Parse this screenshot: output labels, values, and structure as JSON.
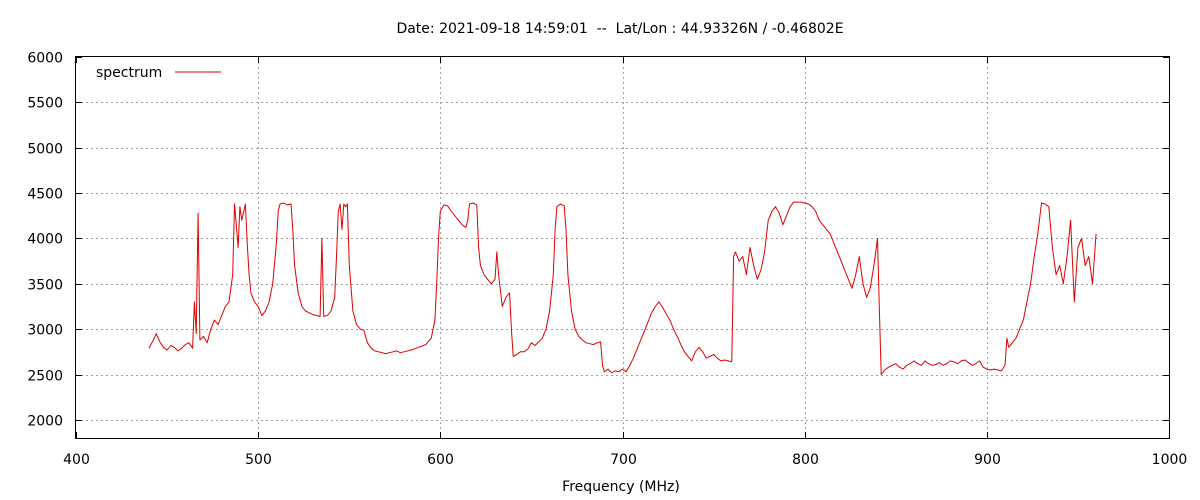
{
  "chart_data": {
    "type": "line",
    "title": "Date: 2021-09-18 14:59:01  --  Lat/Lon : 44.93326N / -0.46802E",
    "xlabel": "Frequency (MHz)",
    "ylabel": "",
    "xlim": [
      400,
      1000
    ],
    "ylim": [
      1800,
      6000
    ],
    "x_ticks": [
      400,
      500,
      600,
      700,
      800,
      900,
      1000
    ],
    "y_ticks": [
      2000,
      2500,
      3000,
      3500,
      4000,
      4500,
      5000,
      5500,
      6000
    ],
    "grid": true,
    "legend_position": "top-left",
    "series": [
      {
        "name": "spectrum",
        "color": "#e00000",
        "points": [
          [
            440,
            2790
          ],
          [
            442,
            2860
          ],
          [
            444,
            2950
          ],
          [
            446,
            2860
          ],
          [
            448,
            2800
          ],
          [
            450,
            2770
          ],
          [
            452,
            2820
          ],
          [
            454,
            2800
          ],
          [
            456,
            2760
          ],
          [
            458,
            2790
          ],
          [
            460,
            2830
          ],
          [
            462,
            2850
          ],
          [
            464,
            2790
          ],
          [
            465,
            3300
          ],
          [
            466,
            2950
          ],
          [
            467,
            4280
          ],
          [
            468,
            2880
          ],
          [
            470,
            2920
          ],
          [
            472,
            2850
          ],
          [
            474,
            3000
          ],
          [
            476,
            3100
          ],
          [
            478,
            3050
          ],
          [
            480,
            3150
          ],
          [
            482,
            3250
          ],
          [
            484,
            3300
          ],
          [
            486,
            3600
          ],
          [
            487,
            4380
          ],
          [
            488,
            4150
          ],
          [
            489,
            3900
          ],
          [
            490,
            4350
          ],
          [
            491,
            4200
          ],
          [
            493,
            4380
          ],
          [
            494,
            3950
          ],
          [
            495,
            3600
          ],
          [
            496,
            3400
          ],
          [
            498,
            3300
          ],
          [
            500,
            3250
          ],
          [
            502,
            3150
          ],
          [
            504,
            3200
          ],
          [
            506,
            3300
          ],
          [
            508,
            3500
          ],
          [
            510,
            3950
          ],
          [
            511,
            4300
          ],
          [
            512,
            4380
          ],
          [
            514,
            4390
          ],
          [
            516,
            4370
          ],
          [
            518,
            4380
          ],
          [
            519,
            4100
          ],
          [
            520,
            3700
          ],
          [
            522,
            3400
          ],
          [
            524,
            3250
          ],
          [
            526,
            3200
          ],
          [
            528,
            3180
          ],
          [
            530,
            3160
          ],
          [
            532,
            3150
          ],
          [
            534,
            3140
          ],
          [
            535,
            4000
          ],
          [
            536,
            3140
          ],
          [
            538,
            3150
          ],
          [
            540,
            3200
          ],
          [
            542,
            3350
          ],
          [
            543,
            3800
          ],
          [
            544,
            4300
          ],
          [
            545,
            4380
          ],
          [
            546,
            4100
          ],
          [
            547,
            4380
          ],
          [
            548,
            4350
          ],
          [
            549,
            4380
          ],
          [
            550,
            3700
          ],
          [
            552,
            3200
          ],
          [
            554,
            3050
          ],
          [
            556,
            3000
          ],
          [
            558,
            2990
          ],
          [
            560,
            2850
          ],
          [
            562,
            2790
          ],
          [
            564,
            2760
          ],
          [
            566,
            2750
          ],
          [
            568,
            2740
          ],
          [
            570,
            2730
          ],
          [
            572,
            2740
          ],
          [
            574,
            2750
          ],
          [
            576,
            2760
          ],
          [
            578,
            2740
          ],
          [
            580,
            2750
          ],
          [
            584,
            2770
          ],
          [
            588,
            2800
          ],
          [
            592,
            2830
          ],
          [
            595,
            2900
          ],
          [
            597,
            3100
          ],
          [
            598,
            3500
          ],
          [
            599,
            4000
          ],
          [
            600,
            4300
          ],
          [
            602,
            4370
          ],
          [
            604,
            4360
          ],
          [
            606,
            4300
          ],
          [
            608,
            4250
          ],
          [
            610,
            4200
          ],
          [
            612,
            4150
          ],
          [
            614,
            4120
          ],
          [
            615,
            4200
          ],
          [
            616,
            4380
          ],
          [
            618,
            4390
          ],
          [
            620,
            4370
          ],
          [
            621,
            3900
          ],
          [
            622,
            3700
          ],
          [
            624,
            3600
          ],
          [
            626,
            3550
          ],
          [
            628,
            3500
          ],
          [
            630,
            3550
          ],
          [
            631,
            3850
          ],
          [
            632,
            3600
          ],
          [
            634,
            3250
          ],
          [
            636,
            3350
          ],
          [
            638,
            3400
          ],
          [
            639,
            3000
          ],
          [
            640,
            2700
          ],
          [
            642,
            2720
          ],
          [
            644,
            2750
          ],
          [
            646,
            2750
          ],
          [
            648,
            2780
          ],
          [
            650,
            2850
          ],
          [
            652,
            2820
          ],
          [
            654,
            2860
          ],
          [
            656,
            2900
          ],
          [
            658,
            3000
          ],
          [
            660,
            3200
          ],
          [
            662,
            3600
          ],
          [
            663,
            4100
          ],
          [
            664,
            4350
          ],
          [
            666,
            4380
          ],
          [
            668,
            4360
          ],
          [
            669,
            4100
          ],
          [
            670,
            3600
          ],
          [
            672,
            3200
          ],
          [
            674,
            3000
          ],
          [
            676,
            2920
          ],
          [
            678,
            2880
          ],
          [
            680,
            2850
          ],
          [
            682,
            2840
          ],
          [
            684,
            2830
          ],
          [
            686,
            2850
          ],
          [
            688,
            2860
          ],
          [
            689,
            2600
          ],
          [
            690,
            2530
          ],
          [
            692,
            2560
          ],
          [
            694,
            2520
          ],
          [
            696,
            2540
          ],
          [
            698,
            2530
          ],
          [
            700,
            2560
          ],
          [
            702,
            2530
          ],
          [
            704,
            2600
          ],
          [
            706,
            2680
          ],
          [
            708,
            2780
          ],
          [
            710,
            2880
          ],
          [
            712,
            2980
          ],
          [
            714,
            3080
          ],
          [
            716,
            3180
          ],
          [
            718,
            3250
          ],
          [
            720,
            3300
          ],
          [
            722,
            3240
          ],
          [
            724,
            3170
          ],
          [
            726,
            3100
          ],
          [
            728,
            3000
          ],
          [
            730,
            2920
          ],
          [
            732,
            2830
          ],
          [
            734,
            2750
          ],
          [
            736,
            2700
          ],
          [
            738,
            2650
          ],
          [
            740,
            2750
          ],
          [
            742,
            2800
          ],
          [
            744,
            2750
          ],
          [
            746,
            2680
          ],
          [
            748,
            2700
          ],
          [
            750,
            2720
          ],
          [
            752,
            2680
          ],
          [
            754,
            2650
          ],
          [
            756,
            2660
          ],
          [
            758,
            2650
          ],
          [
            760,
            2640
          ],
          [
            761,
            3800
          ],
          [
            762,
            3850
          ],
          [
            764,
            3750
          ],
          [
            766,
            3800
          ],
          [
            768,
            3600
          ],
          [
            770,
            3900
          ],
          [
            772,
            3700
          ],
          [
            774,
            3550
          ],
          [
            776,
            3650
          ],
          [
            778,
            3850
          ],
          [
            780,
            4200
          ],
          [
            782,
            4300
          ],
          [
            784,
            4350
          ],
          [
            786,
            4280
          ],
          [
            788,
            4150
          ],
          [
            790,
            4250
          ],
          [
            792,
            4350
          ],
          [
            794,
            4400
          ],
          [
            796,
            4400
          ],
          [
            798,
            4400
          ],
          [
            800,
            4390
          ],
          [
            802,
            4380
          ],
          [
            804,
            4350
          ],
          [
            806,
            4300
          ],
          [
            808,
            4200
          ],
          [
            810,
            4150
          ],
          [
            812,
            4100
          ],
          [
            814,
            4050
          ],
          [
            816,
            3950
          ],
          [
            818,
            3850
          ],
          [
            820,
            3750
          ],
          [
            822,
            3650
          ],
          [
            824,
            3550
          ],
          [
            826,
            3450
          ],
          [
            828,
            3600
          ],
          [
            830,
            3800
          ],
          [
            832,
            3500
          ],
          [
            834,
            3350
          ],
          [
            836,
            3450
          ],
          [
            838,
            3700
          ],
          [
            840,
            4000
          ],
          [
            841,
            3200
          ],
          [
            842,
            2500
          ],
          [
            844,
            2550
          ],
          [
            846,
            2580
          ],
          [
            848,
            2600
          ],
          [
            850,
            2620
          ],
          [
            852,
            2580
          ],
          [
            854,
            2560
          ],
          [
            856,
            2600
          ],
          [
            858,
            2620
          ],
          [
            860,
            2650
          ],
          [
            862,
            2620
          ],
          [
            864,
            2600
          ],
          [
            866,
            2650
          ],
          [
            868,
            2620
          ],
          [
            870,
            2600
          ],
          [
            872,
            2610
          ],
          [
            874,
            2630
          ],
          [
            876,
            2600
          ],
          [
            878,
            2620
          ],
          [
            880,
            2650
          ],
          [
            882,
            2640
          ],
          [
            884,
            2620
          ],
          [
            886,
            2650
          ],
          [
            888,
            2660
          ],
          [
            890,
            2630
          ],
          [
            892,
            2600
          ],
          [
            894,
            2620
          ],
          [
            896,
            2650
          ],
          [
            898,
            2580
          ],
          [
            900,
            2560
          ],
          [
            902,
            2550
          ],
          [
            904,
            2560
          ],
          [
            906,
            2550
          ],
          [
            908,
            2540
          ],
          [
            910,
            2600
          ],
          [
            911,
            2900
          ],
          [
            912,
            2800
          ],
          [
            914,
            2850
          ],
          [
            916,
            2900
          ],
          [
            918,
            3000
          ],
          [
            920,
            3100
          ],
          [
            922,
            3300
          ],
          [
            924,
            3500
          ],
          [
            926,
            3800
          ],
          [
            928,
            4050
          ],
          [
            930,
            4390
          ],
          [
            932,
            4380
          ],
          [
            934,
            4350
          ],
          [
            936,
            3900
          ],
          [
            938,
            3600
          ],
          [
            940,
            3700
          ],
          [
            942,
            3500
          ],
          [
            944,
            3800
          ],
          [
            946,
            4200
          ],
          [
            948,
            3300
          ],
          [
            950,
            3900
          ],
          [
            952,
            4000
          ],
          [
            954,
            3700
          ],
          [
            956,
            3800
          ],
          [
            958,
            3500
          ],
          [
            960,
            4050
          ]
        ]
      }
    ]
  }
}
